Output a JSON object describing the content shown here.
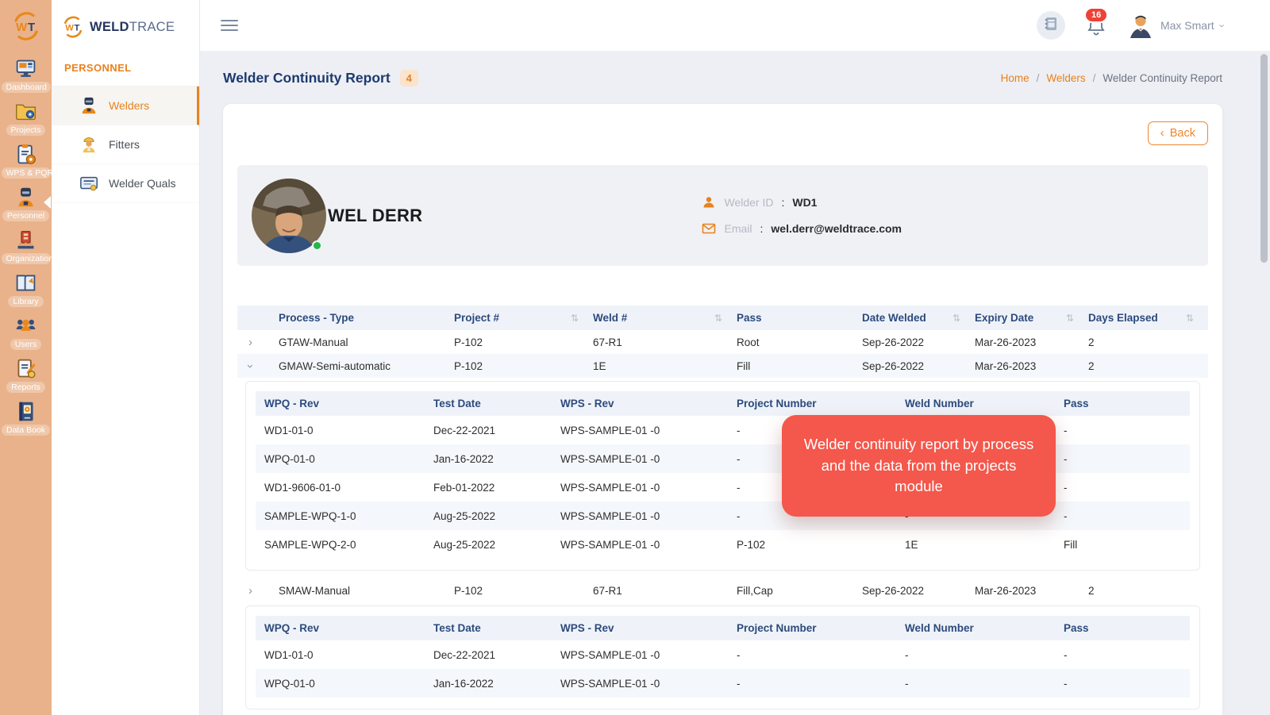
{
  "brand": {
    "name_bold": "WELD",
    "name_light": "TRACE"
  },
  "left_rail": {
    "items": [
      {
        "label": "Dashboard",
        "icon": "dashboard-icon",
        "active": false
      },
      {
        "label": "Projects",
        "icon": "projects-icon",
        "active": false
      },
      {
        "label": "WPS & PQR",
        "icon": "wps-pqr-icon",
        "active": false
      },
      {
        "label": "Personnel",
        "icon": "personnel-icon",
        "active": true
      },
      {
        "label": "Organization",
        "icon": "organization-icon",
        "active": false
      },
      {
        "label": "Library",
        "icon": "library-icon",
        "active": false
      },
      {
        "label": "Users",
        "icon": "users-icon",
        "active": false
      },
      {
        "label": "Reports",
        "icon": "reports-icon",
        "active": false
      },
      {
        "label": "Data Book",
        "icon": "data-book-icon",
        "active": false
      }
    ]
  },
  "sidebar": {
    "section": "PERSONNEL",
    "items": [
      {
        "label": "Welders",
        "icon": "welders-icon",
        "active": true
      },
      {
        "label": "Fitters",
        "icon": "fitters-icon",
        "active": false
      },
      {
        "label": "Welder Quals",
        "icon": "welder-quals-icon",
        "active": false
      }
    ]
  },
  "topbar": {
    "notification_count": "16",
    "user_name": "Max Smart"
  },
  "page": {
    "title": "Welder Continuity Report",
    "badge": "4",
    "back_label": "Back",
    "breadcrumb": [
      {
        "label": "Home",
        "link": true
      },
      {
        "label": "Welders",
        "link": true
      },
      {
        "label": "Welder Continuity Report",
        "link": false
      }
    ]
  },
  "profile": {
    "name": "WEL DERR",
    "welder_id_label": "Welder ID",
    "welder_id": "WD1",
    "email_label": "Email",
    "email": "wel.derr@weldtrace.com"
  },
  "main_table": {
    "columns": [
      "Process - Type",
      "Project #",
      "Weld #",
      "Pass",
      "Date Welded",
      "Expiry Date",
      "Days Elapsed"
    ],
    "sortable": [
      false,
      true,
      true,
      false,
      true,
      true,
      true
    ],
    "rows": [
      {
        "chevron": "right",
        "details": null,
        "cells": [
          "GTAW-Manual",
          "P-102",
          "67-R1",
          "Root",
          "Sep-26-2022",
          "Mar-26-2023",
          "2"
        ]
      },
      {
        "chevron": "down",
        "details": "gmaw",
        "cells": [
          "GMAW-Semi-automatic",
          "P-102",
          "1E",
          "Fill",
          "Sep-26-2022",
          "Mar-26-2023",
          "2"
        ]
      },
      {
        "chevron": "right",
        "details": "smaw",
        "cells": [
          "SMAW-Manual",
          "P-102",
          "67-R1",
          "Fill,Cap",
          "Sep-26-2022",
          "Mar-26-2023",
          "2"
        ]
      }
    ]
  },
  "detail_tables": {
    "columns": [
      "WPQ - Rev",
      "Test Date",
      "WPS - Rev",
      "Project Number",
      "Weld Number",
      "Pass"
    ],
    "gmaw": [
      [
        "WD1-01-0",
        "Dec-22-2021",
        "WPS-SAMPLE-01 -0",
        "-",
        "-",
        "-"
      ],
      [
        "WPQ-01-0",
        "Jan-16-2022",
        "WPS-SAMPLE-01 -0",
        "-",
        "-",
        "-"
      ],
      [
        "WD1-9606-01-0",
        "Feb-01-2022",
        "WPS-SAMPLE-01 -0",
        "-",
        "-",
        "-"
      ],
      [
        "SAMPLE-WPQ-1-0",
        "Aug-25-2022",
        "WPS-SAMPLE-01 -0",
        "-",
        "-",
        "-"
      ],
      [
        "SAMPLE-WPQ-2-0",
        "Aug-25-2022",
        "WPS-SAMPLE-01 -0",
        "P-102",
        "1E",
        "Fill"
      ]
    ],
    "smaw": [
      [
        "WD1-01-0",
        "Dec-22-2021",
        "WPS-SAMPLE-01 -0",
        "-",
        "-",
        "-"
      ],
      [
        "WPQ-01-0",
        "Jan-16-2022",
        "WPS-SAMPLE-01 -0",
        "-",
        "-",
        "-"
      ]
    ]
  },
  "tooltip": {
    "text": "Welder continuity report by process and the data from the projects module"
  },
  "colors": {
    "accent_orange": "#e8821e",
    "rail_bg": "#e9b28a",
    "navy_heading": "#1e3a6e",
    "tooltip_red": "#f4574b",
    "notification_red": "#ef4136",
    "status_green": "#27b648"
  }
}
